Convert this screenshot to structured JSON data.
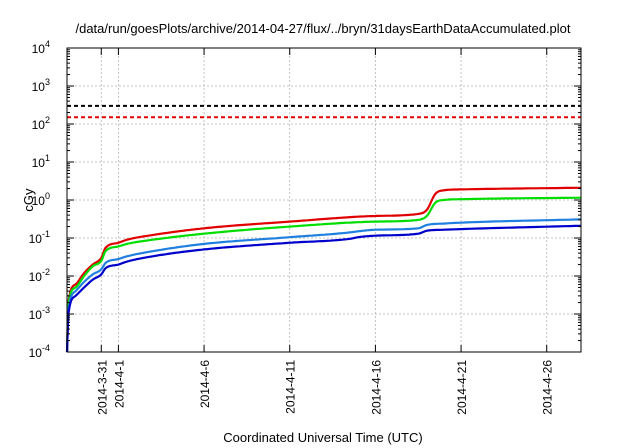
{
  "chart_data": {
    "type": "line",
    "title": "/data/run/goesPlots/archive/2014-04-27/flux/../bryn/31daysEarthDataAccumulated.plot",
    "xlabel": "Coordinated Universal Time (UTC)",
    "ylabel": "cGy",
    "x_ticks": [
      "2014-3-31",
      "2014-4-1",
      "2014-4-6",
      "2014-4-11",
      "2014-4-16",
      "2014-4-21",
      "2014-4-26"
    ],
    "xlim": [
      "2014-03-29",
      "2014-04-28"
    ],
    "ylim": [
      0.0001,
      10000
    ],
    "yscale": "log",
    "y_ticks": [
      {
        "base": "10",
        "exp": "-4"
      },
      {
        "base": "10",
        "exp": "-3"
      },
      {
        "base": "10",
        "exp": "-2"
      },
      {
        "base": "10",
        "exp": "-1"
      },
      {
        "base": "10",
        "exp": "0"
      },
      {
        "base": "10",
        "exp": "1"
      },
      {
        "base": "10",
        "exp": "2"
      },
      {
        "base": "10",
        "exp": "3"
      },
      {
        "base": "10",
        "exp": "4"
      }
    ],
    "grid": true,
    "thresholds": [
      {
        "value": 300,
        "color": "#000000"
      },
      {
        "value": 150,
        "color": "#e00000"
      }
    ],
    "series": [
      {
        "color": "#e00000",
        "points": [
          [
            "2014-03-29 00:00",
            0.0001
          ],
          [
            "2014-03-29 02:00",
            0.002
          ],
          [
            "2014-03-29 12:00",
            0.006
          ],
          [
            "2014-03-30 00:00",
            0.012
          ],
          [
            "2014-03-30 12:00",
            0.02
          ],
          [
            "2014-03-31 00:00",
            0.03
          ],
          [
            "2014-03-31 06:00",
            0.055
          ],
          [
            "2014-04-01 00:00",
            0.075
          ],
          [
            "2014-04-01 12:00",
            0.09
          ],
          [
            "2014-04-03 00:00",
            0.12
          ],
          [
            "2014-04-06 00:00",
            0.18
          ],
          [
            "2014-04-11 00:00",
            0.27
          ],
          [
            "2014-04-16 00:00",
            0.38
          ],
          [
            "2014-04-18 12:00",
            0.43
          ],
          [
            "2014-04-19 00:00",
            0.55
          ],
          [
            "2014-04-19 12:00",
            1.45
          ],
          [
            "2014-04-20 00:00",
            1.8
          ],
          [
            "2014-04-21 00:00",
            1.9
          ],
          [
            "2014-04-28 00:00",
            2.1
          ]
        ]
      },
      {
        "color": "#00dd00",
        "points": [
          [
            "2014-03-29 00:00",
            0.0001
          ],
          [
            "2014-03-29 02:00",
            0.0018
          ],
          [
            "2014-03-29 12:00",
            0.005
          ],
          [
            "2014-03-30 00:00",
            0.01
          ],
          [
            "2014-03-30 12:00",
            0.018
          ],
          [
            "2014-03-31 00:00",
            0.025
          ],
          [
            "2014-03-31 06:00",
            0.045
          ],
          [
            "2014-04-01 00:00",
            0.06
          ],
          [
            "2014-04-01 12:00",
            0.07
          ],
          [
            "2014-04-03 00:00",
            0.09
          ],
          [
            "2014-04-06 00:00",
            0.13
          ],
          [
            "2014-04-11 00:00",
            0.2
          ],
          [
            "2014-04-16 00:00",
            0.27
          ],
          [
            "2014-04-18 12:00",
            0.3
          ],
          [
            "2014-04-19 00:00",
            0.38
          ],
          [
            "2014-04-19 12:00",
            0.85
          ],
          [
            "2014-04-20 00:00",
            1.0
          ],
          [
            "2014-04-21 00:00",
            1.05
          ],
          [
            "2014-04-28 00:00",
            1.15
          ]
        ]
      },
      {
        "color": "#2080e0",
        "points": [
          [
            "2014-03-29 00:00",
            0.0001
          ],
          [
            "2014-03-29 02:00",
            0.0012
          ],
          [
            "2014-03-29 12:00",
            0.004
          ],
          [
            "2014-03-30 00:00",
            0.007
          ],
          [
            "2014-03-30 12:00",
            0.011
          ],
          [
            "2014-03-31 00:00",
            0.015
          ],
          [
            "2014-03-31 06:00",
            0.022
          ],
          [
            "2014-04-01 00:00",
            0.028
          ],
          [
            "2014-04-01 12:00",
            0.033
          ],
          [
            "2014-04-03 00:00",
            0.045
          ],
          [
            "2014-04-06 00:00",
            0.07
          ],
          [
            "2014-04-11 00:00",
            0.105
          ],
          [
            "2014-04-14 12:00",
            0.14
          ],
          [
            "2014-04-15 00:00",
            0.15
          ],
          [
            "2014-04-16 00:00",
            0.165
          ],
          [
            "2014-04-18 12:00",
            0.18
          ],
          [
            "2014-04-19 00:00",
            0.22
          ],
          [
            "2014-04-20 00:00",
            0.24
          ],
          [
            "2014-04-28 00:00",
            0.31
          ]
        ]
      },
      {
        "color": "#0000cc",
        "points": [
          [
            "2014-03-29 00:00",
            0.0001
          ],
          [
            "2014-03-29 02:00",
            0.001
          ],
          [
            "2014-03-29 12:00",
            0.003
          ],
          [
            "2014-03-30 00:00",
            0.005
          ],
          [
            "2014-03-30 12:00",
            0.008
          ],
          [
            "2014-03-31 00:00",
            0.011
          ],
          [
            "2014-03-31 06:00",
            0.016
          ],
          [
            "2014-04-01 00:00",
            0.02
          ],
          [
            "2014-04-01 12:00",
            0.024
          ],
          [
            "2014-04-03 00:00",
            0.033
          ],
          [
            "2014-04-06 00:00",
            0.05
          ],
          [
            "2014-04-11 00:00",
            0.075
          ],
          [
            "2014-04-14 12:00",
            0.095
          ],
          [
            "2014-04-15 00:00",
            0.105
          ],
          [
            "2014-04-16 00:00",
            0.115
          ],
          [
            "2014-04-18 12:00",
            0.13
          ],
          [
            "2014-04-19 00:00",
            0.155
          ],
          [
            "2014-04-20 00:00",
            0.165
          ],
          [
            "2014-04-28 00:00",
            0.21
          ]
        ]
      }
    ]
  }
}
